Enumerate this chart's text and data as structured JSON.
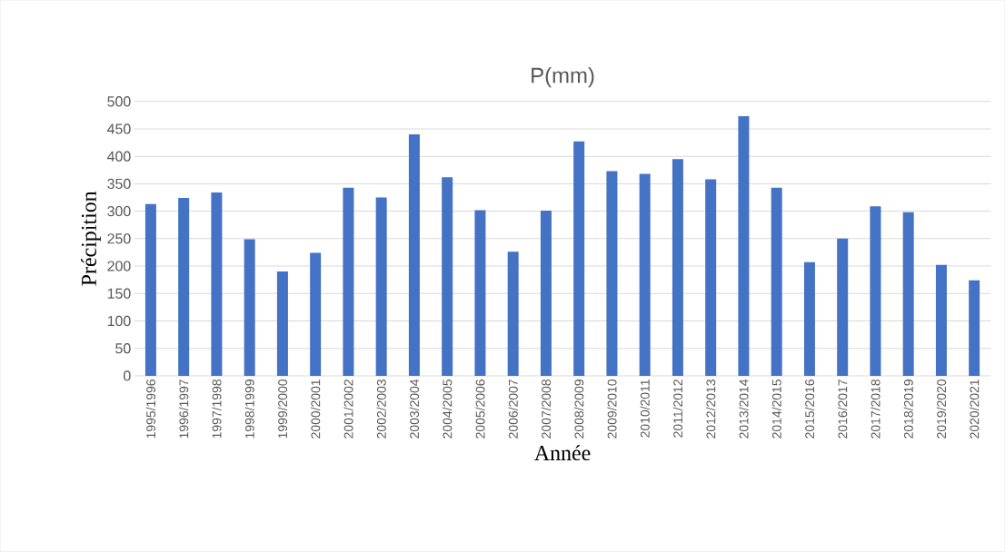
{
  "chart_data": {
    "type": "bar",
    "title": "P(mm)",
    "xlabel": "Année",
    "ylabel": "Précipition",
    "categories": [
      "1995/1996",
      "1996/1997",
      "1997/1998",
      "1998/1999",
      "1999/2000",
      "2000/2001",
      "2001/2002",
      "2002/2003",
      "2003/2004",
      "2004/2005",
      "2005/2006",
      "2006/2007",
      "2007/2008",
      "2008/2009",
      "2009/2010",
      "2010/2011",
      "2011/2012",
      "2012/2013",
      "2013/2014",
      "2014/2015",
      "2015/2016",
      "2016/2017",
      "2017/2018",
      "2018/2019",
      "2019/2020",
      "2020/2021"
    ],
    "values": [
      313,
      324,
      334,
      249,
      190,
      224,
      343,
      325,
      440,
      362,
      302,
      226,
      301,
      427,
      373,
      368,
      395,
      358,
      473,
      343,
      207,
      250,
      309,
      298,
      202,
      174
    ],
    "color": "#4472c4",
    "ylim": [
      0,
      500
    ],
    "yticks": [
      0,
      50,
      100,
      150,
      200,
      250,
      300,
      350,
      400,
      450,
      500
    ],
    "grid": "y"
  }
}
